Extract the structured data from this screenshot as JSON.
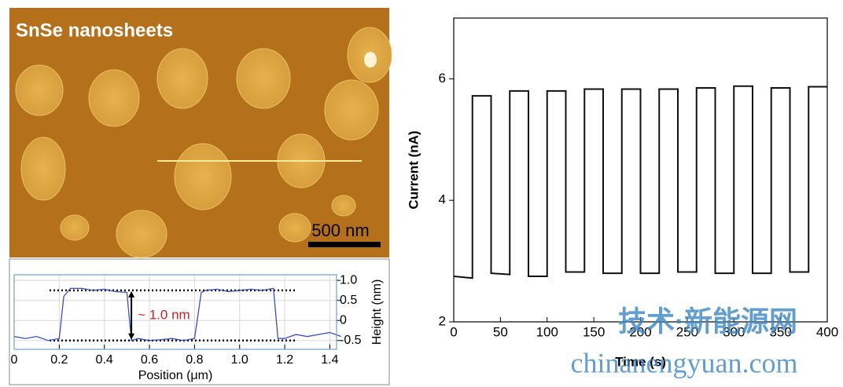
{
  "image": {
    "label": "SnSe nanosheets",
    "scale_bar": "500 nm"
  },
  "watermark": {
    "line1": "技术·新能源网",
    "line2": "chinanengyuan.com"
  },
  "chart_data": [
    {
      "type": "line",
      "xlabel": "Position (μm)",
      "ylabel": "Height (nm)",
      "annotation": "~ 1.0 nm",
      "x": [
        0,
        0.05,
        0.1,
        0.15,
        0.2,
        0.22,
        0.25,
        0.3,
        0.35,
        0.4,
        0.45,
        0.5,
        0.52,
        0.55,
        0.6,
        0.65,
        0.7,
        0.75,
        0.8,
        0.83,
        0.85,
        0.9,
        0.95,
        1.0,
        1.05,
        1.1,
        1.15,
        1.17,
        1.2,
        1.25,
        1.3,
        1.35,
        1.4,
        1.45
      ],
      "series": [
        {
          "color": "#3b4fc4",
          "values": [
            -0.4,
            -0.45,
            -0.4,
            -0.5,
            -0.45,
            0.6,
            0.8,
            0.8,
            0.75,
            0.78,
            0.72,
            0.7,
            -0.5,
            -0.45,
            -0.5,
            -0.48,
            -0.45,
            -0.5,
            -0.45,
            0.7,
            0.75,
            0.78,
            0.72,
            0.75,
            0.78,
            0.75,
            0.8,
            -0.45,
            -0.45,
            -0.35,
            -0.4,
            -0.35,
            -0.3,
            -0.4
          ]
        }
      ],
      "reference_lines": [
        0.75,
        -0.5
      ],
      "xlim": [
        0,
        1.43
      ],
      "xticks": [
        0,
        0.2,
        0.4,
        0.6,
        0.8,
        {
          "value": 1,
          "label": "1.0"
        },
        1.2,
        1.4
      ],
      "ylim": [
        -0.72,
        1.14
      ],
      "yticks": [
        -0.5,
        0,
        0.5,
        {
          "value": 1,
          "label": "1.0"
        }
      ],
      "grid": true
    },
    {
      "type": "line",
      "xlabel": "Time (s)",
      "ylabel": "Current (nA)",
      "x": [
        0,
        20,
        20,
        40,
        40,
        60,
        60,
        80,
        80,
        100,
        100,
        120,
        120,
        140,
        140,
        160,
        160,
        180,
        180,
        200,
        200,
        220,
        220,
        240,
        240,
        260,
        260,
        280,
        280,
        300,
        300,
        320,
        320,
        340,
        340,
        360,
        360,
        380,
        380,
        400
      ],
      "series": [
        {
          "color": "#111111",
          "values": [
            2.75,
            2.72,
            5.72,
            5.72,
            2.8,
            2.78,
            5.8,
            5.8,
            2.75,
            2.75,
            5.8,
            5.8,
            2.82,
            2.82,
            5.83,
            5.83,
            2.8,
            2.8,
            5.83,
            5.83,
            2.8,
            2.8,
            5.83,
            5.83,
            2.82,
            2.82,
            5.85,
            5.85,
            2.8,
            2.8,
            5.88,
            5.88,
            2.8,
            2.8,
            5.85,
            5.85,
            2.82,
            2.82,
            5.87,
            5.87
          ]
        }
      ],
      "xlim": [
        0,
        400
      ],
      "xticks": [
        0,
        50,
        100,
        150,
        200,
        250,
        300,
        350,
        400
      ],
      "ylim": [
        2,
        7
      ],
      "yticks": [
        2,
        4,
        6
      ],
      "grid": false
    }
  ]
}
